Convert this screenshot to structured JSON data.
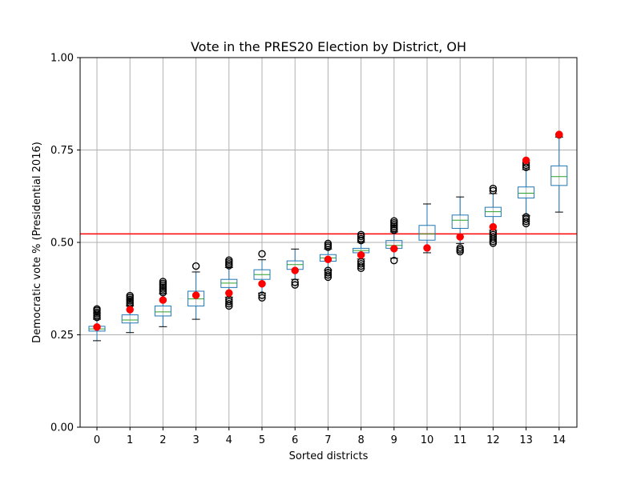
{
  "chart_data": {
    "type": "box",
    "title": "Vote in the PRES20 Election by District, OH",
    "xlabel": "Sorted districts",
    "ylabel": "Democratic vote % (Presidential 2016)",
    "ylim": [
      0,
      1
    ],
    "yticks": [
      "0.00",
      "0.25",
      "0.50",
      "0.75",
      "1.00"
    ],
    "grid": true,
    "categories": [
      "0",
      "1",
      "2",
      "3",
      "4",
      "5",
      "6",
      "7",
      "8",
      "9",
      "10",
      "11",
      "12",
      "13",
      "14"
    ],
    "reference_line": {
      "y": 0.523,
      "color": "#ff0000"
    },
    "colors": {
      "box": "#1f77b4",
      "median": "#2ca02c",
      "marker": "#ff0000",
      "refline": "#ff0000",
      "grid": "#b0b0b0"
    },
    "boxes": [
      {
        "q1": 0.26,
        "median": 0.266,
        "q3": 0.273,
        "whislo": 0.234,
        "whishi": 0.292,
        "fliers_low": [],
        "fliers_high": [
          0.297,
          0.302,
          0.307,
          0.311,
          0.316,
          0.32
        ]
      },
      {
        "q1": 0.282,
        "median": 0.29,
        "q3": 0.304,
        "whislo": 0.256,
        "whishi": 0.328,
        "fliers_low": [],
        "fliers_high": [
          0.332,
          0.337,
          0.342,
          0.346,
          0.351,
          0.356
        ]
      },
      {
        "q1": 0.301,
        "median": 0.312,
        "q3": 0.328,
        "whislo": 0.272,
        "whishi": 0.361,
        "fliers_low": [],
        "fliers_high": [
          0.364,
          0.369,
          0.374,
          0.379,
          0.384,
          0.389,
          0.394
        ]
      },
      {
        "q1": 0.328,
        "median": 0.347,
        "q3": 0.368,
        "whislo": 0.292,
        "whishi": 0.42,
        "fliers_low": [],
        "fliers_high": [
          0.436
        ]
      },
      {
        "q1": 0.378,
        "median": 0.39,
        "q3": 0.4,
        "whislo": 0.352,
        "whishi": 0.432,
        "fliers_low": [
          0.328,
          0.334,
          0.34,
          0.346
        ],
        "fliers_high": [
          0.437,
          0.442,
          0.447,
          0.452
        ]
      },
      {
        "q1": 0.4,
        "median": 0.413,
        "q3": 0.426,
        "whislo": 0.363,
        "whishi": 0.453,
        "fliers_low": [
          0.35,
          0.357
        ],
        "fliers_high": [
          0.469
        ]
      },
      {
        "q1": 0.427,
        "median": 0.44,
        "q3": 0.45,
        "whislo": 0.4,
        "whishi": 0.482,
        "fliers_low": [
          0.385,
          0.392
        ],
        "fliers_high": []
      },
      {
        "q1": 0.449,
        "median": 0.458,
        "q3": 0.467,
        "whislo": 0.425,
        "whishi": 0.482,
        "fliers_low": [
          0.406,
          0.412,
          0.418,
          0.424
        ],
        "fliers_high": [
          0.487,
          0.492,
          0.497
        ]
      },
      {
        "q1": 0.472,
        "median": 0.478,
        "q3": 0.484,
        "whislo": 0.455,
        "whishi": 0.5,
        "fliers_low": [
          0.43,
          0.436,
          0.442,
          0.448
        ],
        "fliers_high": [
          0.505,
          0.51,
          0.516,
          0.521
        ]
      },
      {
        "q1": 0.484,
        "median": 0.492,
        "q3": 0.505,
        "whislo": 0.457,
        "whishi": 0.528,
        "fliers_low": [
          0.451
        ],
        "fliers_high": [
          0.533,
          0.538,
          0.543,
          0.548,
          0.553,
          0.558
        ]
      },
      {
        "q1": 0.506,
        "median": 0.523,
        "q3": 0.546,
        "whislo": 0.472,
        "whishi": 0.604,
        "fliers_low": [],
        "fliers_high": []
      },
      {
        "q1": 0.538,
        "median": 0.56,
        "q3": 0.574,
        "whislo": 0.497,
        "whishi": 0.623,
        "fliers_low": [
          0.475,
          0.48,
          0.485
        ],
        "fliers_high": []
      },
      {
        "q1": 0.57,
        "median": 0.583,
        "q3": 0.595,
        "whislo": 0.533,
        "whishi": 0.632,
        "fliers_low": [
          0.498,
          0.503,
          0.509,
          0.515,
          0.521,
          0.527
        ],
        "fliers_high": [
          0.64,
          0.646
        ]
      },
      {
        "q1": 0.62,
        "median": 0.633,
        "q3": 0.65,
        "whislo": 0.573,
        "whishi": 0.697,
        "fliers_low": [
          0.551,
          0.557,
          0.563,
          0.569
        ],
        "fliers_high": [
          0.703,
          0.709,
          0.715
        ]
      },
      {
        "q1": 0.654,
        "median": 0.678,
        "q3": 0.707,
        "whislo": 0.582,
        "whishi": 0.785,
        "fliers_low": [],
        "fliers_high": [
          0.791
        ]
      }
    ],
    "enacted": [
      0.271,
      0.318,
      0.344,
      0.357,
      0.363,
      0.388,
      0.424,
      0.454,
      0.466,
      0.483,
      0.485,
      0.515,
      0.542,
      0.722,
      0.792
    ]
  }
}
